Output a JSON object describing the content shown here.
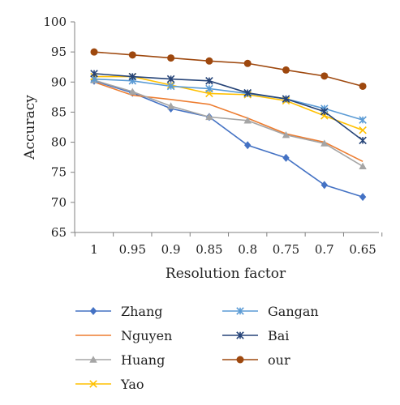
{
  "chart_data": {
    "type": "line",
    "title": "",
    "xlabel": "Resolution factor",
    "ylabel": "Accuracy",
    "categories": [
      "1",
      "0.95",
      "0.9",
      "0.85",
      "0.8",
      "0.75",
      "0.7",
      "0.65"
    ],
    "ylim": [
      65,
      100
    ],
    "yticks": [
      65,
      70,
      75,
      80,
      85,
      90,
      95,
      100
    ],
    "grid": false,
    "legend_position": "bottom",
    "series": [
      {
        "name": "Zhang",
        "color": "#4472c4",
        "marker": "diamond",
        "values": [
          90.2,
          88.2,
          85.6,
          84.2,
          79.5,
          77.4,
          72.9,
          70.9
        ]
      },
      {
        "name": "Nguyen",
        "color": "#ed7d31",
        "marker": "none",
        "values": [
          90.0,
          87.8,
          87.1,
          86.3,
          84.0,
          81.4,
          80.0,
          76.8
        ]
      },
      {
        "name": "Huang",
        "color": "#a5a5a5",
        "marker": "triangle",
        "values": [
          90.3,
          88.4,
          86.0,
          84.2,
          83.6,
          81.2,
          79.8,
          76.0
        ]
      },
      {
        "name": "Yao",
        "color": "#ffc000",
        "marker": "x",
        "values": [
          90.9,
          90.9,
          89.5,
          88.1,
          87.9,
          86.9,
          84.4,
          82.0
        ]
      },
      {
        "name": "Gangan",
        "color": "#5b9bd5",
        "marker": "asterisk",
        "values": [
          90.5,
          90.2,
          89.3,
          88.9,
          88.1,
          87.2,
          85.6,
          83.7
        ]
      },
      {
        "name": "Bai",
        "color": "#264478",
        "marker": "asterisk",
        "values": [
          91.4,
          90.9,
          90.5,
          90.2,
          88.2,
          87.2,
          85.1,
          80.3
        ]
      },
      {
        "name": "our",
        "color": "#9e480e",
        "marker": "circle",
        "values": [
          95.0,
          94.5,
          94.0,
          93.5,
          93.1,
          92.0,
          91.0,
          89.3
        ]
      }
    ]
  }
}
